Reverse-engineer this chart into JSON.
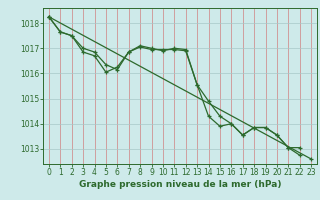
{
  "title": "Graphe pression niveau de la mer (hPa)",
  "bg_color": "#ceeaea",
  "line_color": "#2d6a2d",
  "xlim": [
    -0.5,
    23.5
  ],
  "ylim": [
    1012.4,
    1018.6
  ],
  "yticks": [
    1013,
    1014,
    1015,
    1016,
    1017,
    1018
  ],
  "xticks": [
    0,
    1,
    2,
    3,
    4,
    5,
    6,
    7,
    8,
    9,
    10,
    11,
    12,
    13,
    14,
    15,
    16,
    17,
    18,
    19,
    20,
    21,
    22,
    23
  ],
  "series1_x": [
    0,
    1,
    2,
    3,
    4,
    5,
    6,
    7,
    8,
    9,
    10,
    11,
    12,
    13,
    14,
    15,
    16,
    17,
    18,
    19,
    20,
    21,
    22
  ],
  "series1_y": [
    1018.25,
    1017.65,
    1017.5,
    1016.85,
    1016.7,
    1016.05,
    1016.25,
    1016.85,
    1017.05,
    1016.95,
    1016.95,
    1016.95,
    1016.9,
    1015.55,
    1014.9,
    1014.3,
    1014.0,
    1013.55,
    1013.85,
    1013.85,
    1013.55,
    1013.05,
    1012.75
  ],
  "series2_x": [
    0,
    23
  ],
  "series2_y": [
    1018.25,
    1012.6
  ],
  "series3_x": [
    0,
    1,
    2,
    3,
    4,
    5,
    6,
    7,
    8,
    9,
    10,
    11,
    12,
    13,
    14,
    15,
    16,
    17,
    18,
    19,
    20,
    21,
    22
  ],
  "series3_y": [
    1018.25,
    1017.65,
    1017.5,
    1017.0,
    1016.85,
    1016.35,
    1016.15,
    1016.85,
    1017.1,
    1017.0,
    1016.9,
    1017.0,
    1016.95,
    1015.55,
    1014.3,
    1013.9,
    1014.0,
    1013.55,
    1013.85,
    1013.85,
    1013.55,
    1013.05,
    1013.05
  ],
  "vgrid_color": "#d08080",
  "hgrid_color": "#a8c8c8",
  "title_fontsize": 6.5,
  "tick_fontsize": 5.5
}
